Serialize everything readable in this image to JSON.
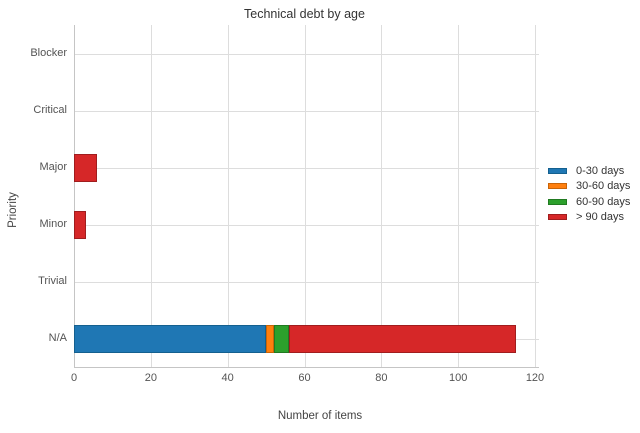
{
  "chart_data": {
    "type": "bar",
    "orientation": "horizontal",
    "stacked": true,
    "title": "Technical debt by age",
    "xlabel": "Number of items",
    "ylabel": "Priority",
    "categories": [
      "Blocker",
      "Critical",
      "Major",
      "Minor",
      "Trivial",
      "N/A"
    ],
    "series": [
      {
        "name": "0-30 days",
        "color": "#1f77b4",
        "border_color": "#14608f",
        "values": [
          0,
          0,
          0,
          0,
          0,
          50
        ]
      },
      {
        "name": "30-60 days",
        "color": "#ff7f0e",
        "border_color": "#c86408",
        "values": [
          0,
          0,
          0,
          0,
          0,
          2
        ]
      },
      {
        "name": "60-90 days",
        "color": "#2ca02c",
        "border_color": "#217a21",
        "values": [
          0,
          0,
          0,
          0,
          0,
          4
        ]
      },
      {
        "name": "> 90 days",
        "color": "#d62728",
        "border_color": "#a01d1e",
        "values": [
          0,
          0,
          6,
          3,
          0,
          59
        ]
      }
    ],
    "totals_by_category": [
      0,
      0,
      6,
      3,
      0,
      115
    ],
    "x_ticks": [
      0,
      20,
      40,
      60,
      80,
      100,
      120
    ],
    "xlim": [
      0,
      120
    ],
    "grid": true,
    "legend_position": "right",
    "background_color": "#ffffff",
    "gridline_color": "#dddddd",
    "axis_line_color": "#c5c5c5",
    "text_color": "#545454",
    "title_color": "#333333"
  }
}
